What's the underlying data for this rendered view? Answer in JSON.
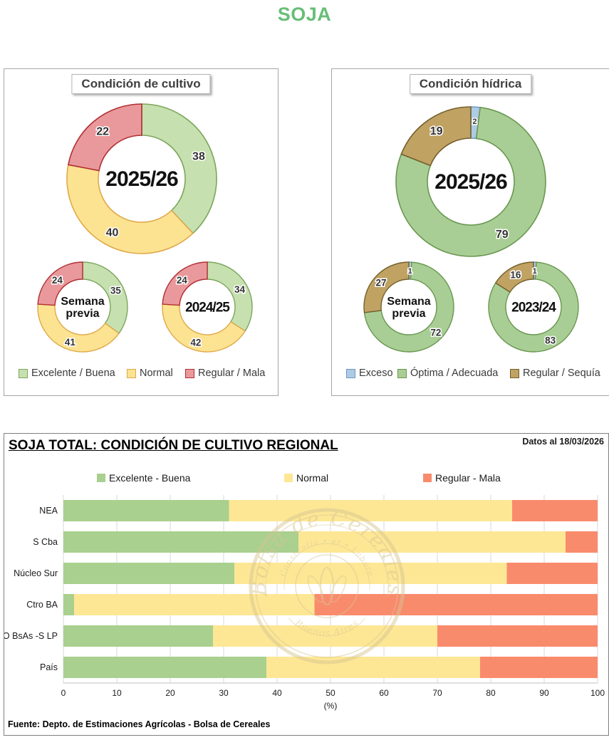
{
  "ui": {
    "page_title": "SOJA",
    "date_note": "Datos al 18/03/2026",
    "footer": "Fuente: Depto. de Estimaciones Agrícolas - Bolsa de Cereales",
    "watermark_line1": "Bolsa de Cereales",
    "watermark_line2": "Constantia • et • Labore",
    "watermark_line3": "Buenos Aires"
  },
  "colors": {
    "title": "#67be77",
    "cultivo_fills": [
      "#c7e0b0",
      "#fce392",
      "#e9999c"
    ],
    "cultivo_strokes": [
      "#7aa65b",
      "#dfa94a",
      "#b02f34"
    ],
    "hidrica_fills": [
      "#aecbe5",
      "#a9ce95",
      "#c0a263"
    ],
    "hidrica_strokes": [
      "#6f95c3",
      "#699750",
      "#73602b"
    ],
    "bar_fills": [
      "#a9d08e",
      "#fde795",
      "#f98b6d"
    ],
    "watermark": "#d8c693",
    "gridline": "#d9d9d9"
  },
  "chart_data": [
    {
      "type": "pie",
      "subtype": "donut",
      "title": "Condición de cultivo",
      "categories": [
        "Excelente / Buena",
        "Normal",
        "Regular / Mala"
      ],
      "series": [
        {
          "name": "2025/26",
          "values": [
            38,
            40,
            22
          ]
        },
        {
          "name": "Semana previa",
          "values": [
            35,
            41,
            24
          ]
        },
        {
          "name": "2024/25",
          "values": [
            34,
            42,
            24
          ]
        }
      ],
      "legend_position": "bottom"
    },
    {
      "type": "pie",
      "subtype": "donut",
      "title": "Condición hídrica",
      "categories": [
        "Exceso",
        "Óptima / Adecuada",
        "Regular / Sequía"
      ],
      "series": [
        {
          "name": "2025/26",
          "values": [
            2,
            79,
            19
          ]
        },
        {
          "name": "Semana previa",
          "values": [
            1,
            72,
            27
          ]
        },
        {
          "name": "2023/24",
          "values": [
            1,
            83,
            16
          ]
        }
      ],
      "legend_position": "bottom"
    },
    {
      "type": "bar",
      "orientation": "horizontal",
      "stacked": true,
      "title": "SOJA TOTAL: CONDICIÓN DE CULTIVO REGIONAL",
      "categories": [
        "NEA",
        "S Cba",
        "Núcleo Sur",
        "Ctro BA",
        "SO BsAs -S LP",
        "País"
      ],
      "series": [
        {
          "name": "Excelente - Buena",
          "values": [
            31,
            44,
            32,
            2,
            28,
            38
          ]
        },
        {
          "name": "Normal",
          "values": [
            53,
            50,
            51,
            45,
            42,
            40
          ]
        },
        {
          "name": "Regular - Mala",
          "values": [
            16,
            6,
            17,
            53,
            30,
            22
          ]
        }
      ],
      "xlabel": "(%)",
      "xlim": [
        0,
        100
      ],
      "xticks": [
        0,
        10,
        20,
        30,
        40,
        50,
        60,
        70,
        80,
        90,
        100
      ],
      "grid": true,
      "legend_position": "top"
    }
  ]
}
